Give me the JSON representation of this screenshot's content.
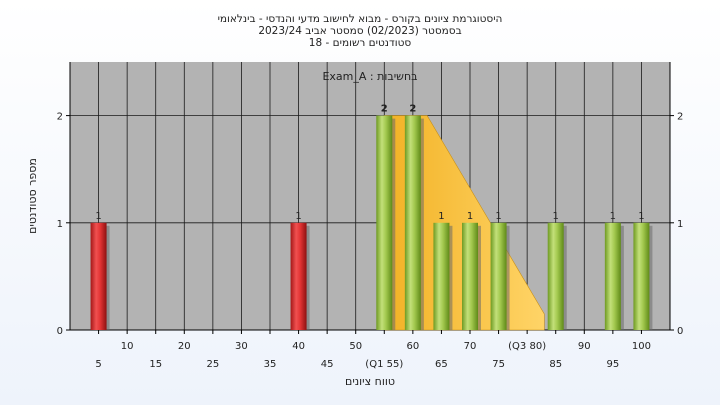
{
  "chart_data": {
    "type": "bar",
    "title_lines": [
      "היסטוגרמת ציונים בקורס - מבוא לחישוב מדעי והנדסי - בינלאומי",
      "בסמסטר  (02/2023)  סמסטר אביב 2023/24",
      "סטודנטים רשומים - 18"
    ],
    "annotation": "בחשיבות : Exam_A",
    "xlabel": "טווח ציונים",
    "ylabel": "מספר סטודנטים",
    "ylim": [
      0,
      2.5
    ],
    "yticks": [
      0,
      1,
      2
    ],
    "grid": true,
    "x_tick_labels": [
      {
        "x": 5,
        "text": "5",
        "row": 2
      },
      {
        "x": 10,
        "text": "10",
        "row": 1
      },
      {
        "x": 15,
        "text": "15",
        "row": 2
      },
      {
        "x": 20,
        "text": "20",
        "row": 1
      },
      {
        "x": 25,
        "text": "25",
        "row": 2
      },
      {
        "x": 30,
        "text": "30",
        "row": 1
      },
      {
        "x": 35,
        "text": "35",
        "row": 2
      },
      {
        "x": 40,
        "text": "40",
        "row": 1
      },
      {
        "x": 45,
        "text": "45",
        "row": 2
      },
      {
        "x": 50,
        "text": "50",
        "row": 1
      },
      {
        "x": 55,
        "text": "(Q1 55)",
        "row": 2
      },
      {
        "x": 60,
        "text": "60",
        "row": 1
      },
      {
        "x": 65,
        "text": "65",
        "row": 2
      },
      {
        "x": 70,
        "text": "70",
        "row": 1
      },
      {
        "x": 75,
        "text": "75",
        "row": 2
      },
      {
        "x": 80,
        "text": "(Q3 80)",
        "row": 1
      },
      {
        "x": 85,
        "text": "85",
        "row": 2
      },
      {
        "x": 90,
        "text": "90",
        "row": 1
      },
      {
        "x": 95,
        "text": "95",
        "row": 2
      },
      {
        "x": 100,
        "text": "100",
        "row": 1
      }
    ],
    "bars": [
      {
        "x": 5,
        "value": 1,
        "label": "1",
        "color": "red"
      },
      {
        "x": 40,
        "value": 1,
        "label": "1",
        "color": "red"
      },
      {
        "x": 55,
        "value": 2,
        "label": "2",
        "color": "green"
      },
      {
        "x": 60,
        "value": 2,
        "label": "2",
        "color": "green"
      },
      {
        "x": 65,
        "value": 1,
        "label": "1",
        "color": "green"
      },
      {
        "x": 70,
        "value": 1,
        "label": "1",
        "color": "green"
      },
      {
        "x": 75,
        "value": 1,
        "label": "1",
        "color": "green"
      },
      {
        "x": 85,
        "value": 1,
        "label": "1",
        "color": "green"
      },
      {
        "x": 95,
        "value": 1,
        "label": "1",
        "color": "green"
      },
      {
        "x": 100,
        "value": 1,
        "label": "1",
        "color": "green"
      }
    ],
    "area_band": {
      "x": [
        55,
        57.5,
        62.5,
        83
      ],
      "y": [
        2,
        2,
        2,
        0.15
      ]
    },
    "colors": {
      "plot_bg": "#b3b3b3",
      "grid": "#1a1a1a",
      "red_bar": "#e03030",
      "green_bar": "#9cc24a",
      "area": "#ffc84a"
    }
  }
}
